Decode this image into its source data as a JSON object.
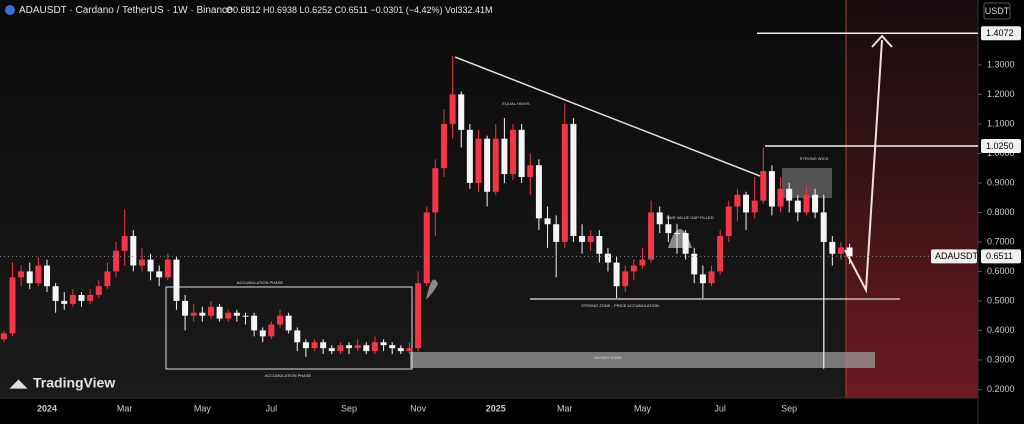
{
  "chart_data": {
    "type": "candlestick",
    "symbol_line": "ADAUSDT · Cardano / TetherUS · 1W · Binance",
    "ohlc_line": "O0.6812 H0.6938 L0.6252 C0.6511 −0.0301 (−4.42%) Vol332.41M",
    "currency": "USDT",
    "brand": "TradingView",
    "up_color": "#f23645",
    "down_color": "#f5f5f5",
    "grid": false,
    "categories": [
      null,
      null,
      null,
      null,
      null,
      "2024",
      null,
      null,
      null,
      null,
      null,
      null,
      null,
      null,
      "Mar",
      null,
      null,
      null,
      null,
      null,
      null,
      null,
      null,
      "May",
      null,
      null,
      null,
      null,
      null,
      null,
      null,
      "Jul",
      null,
      null,
      null,
      null,
      null,
      null,
      null,
      null,
      "Sep",
      null,
      null,
      null,
      null,
      null,
      null,
      null,
      "Nov",
      null,
      null,
      null,
      null,
      null,
      null,
      null,
      null,
      "2025",
      null,
      null,
      null,
      null,
      null,
      null,
      null,
      "Mar",
      null,
      null,
      null,
      null,
      null,
      null,
      null,
      null,
      "May",
      null,
      null,
      null,
      null,
      null,
      null,
      null,
      null,
      "Jul",
      null,
      null,
      null,
      null,
      null,
      null,
      null,
      "Sep",
      null,
      null,
      null,
      null,
      null,
      null,
      null
    ],
    "open": [
      0.37,
      0.39,
      0.58,
      0.6,
      0.56,
      0.62,
      0.55,
      0.5,
      0.49,
      0.52,
      0.5,
      0.52,
      0.55,
      0.6,
      0.67,
      0.72,
      0.62,
      0.64,
      0.6,
      0.58,
      0.64,
      0.5,
      0.45,
      0.46,
      0.45,
      0.48,
      0.44,
      0.46,
      0.45,
      0.45,
      0.4,
      0.38,
      0.42,
      0.45,
      0.4,
      0.36,
      0.34,
      0.36,
      0.34,
      0.33,
      0.35,
      0.34,
      0.35,
      0.33,
      0.36,
      0.35,
      0.34,
      0.33,
      0.34,
      0.56,
      0.8,
      0.95,
      1.1,
      1.2,
      1.08,
      0.9,
      1.05,
      0.87,
      1.05,
      0.93,
      1.08,
      0.92,
      0.96,
      0.78,
      0.76,
      0.7,
      1.1,
      0.72,
      0.7,
      0.72,
      0.66,
      0.63,
      0.55,
      0.6,
      0.62,
      0.64,
      0.8,
      0.76,
      0.73,
      0.73,
      0.66,
      0.59,
      0.56,
      0.6,
      0.72,
      0.82,
      0.86,
      0.8,
      0.84,
      0.94,
      0.82,
      0.88,
      0.84,
      0.8,
      0.86,
      0.8,
      0.7,
      0.66,
      0.6812
    ],
    "high": [
      0.4,
      0.63,
      0.62,
      0.63,
      0.65,
      0.64,
      0.56,
      0.53,
      0.54,
      0.53,
      0.54,
      0.57,
      0.63,
      0.7,
      0.81,
      0.74,
      0.68,
      0.66,
      0.62,
      0.66,
      0.65,
      0.52,
      0.49,
      0.48,
      0.5,
      0.49,
      0.47,
      0.47,
      0.46,
      0.46,
      0.41,
      0.43,
      0.47,
      0.46,
      0.41,
      0.37,
      0.37,
      0.37,
      0.35,
      0.36,
      0.36,
      0.37,
      0.36,
      0.38,
      0.37,
      0.36,
      0.35,
      0.36,
      0.6,
      0.82,
      0.98,
      1.15,
      1.33,
      1.21,
      1.1,
      1.08,
      1.06,
      1.1,
      1.12,
      1.1,
      1.1,
      1.0,
      0.98,
      0.82,
      0.79,
      1.17,
      1.12,
      0.76,
      0.74,
      0.74,
      0.68,
      0.65,
      0.62,
      0.64,
      0.68,
      0.84,
      0.82,
      0.79,
      0.76,
      0.74,
      0.68,
      0.62,
      0.62,
      0.74,
      0.84,
      0.88,
      0.87,
      0.92,
      1.02,
      0.96,
      0.92,
      0.9,
      0.86,
      0.89,
      0.88,
      0.86,
      0.72,
      0.7,
      0.6938
    ],
    "low": [
      0.36,
      0.38,
      0.55,
      0.54,
      0.55,
      0.53,
      0.46,
      0.47,
      0.48,
      0.48,
      0.49,
      0.51,
      0.54,
      0.58,
      0.62,
      0.6,
      0.6,
      0.57,
      0.55,
      0.57,
      0.47,
      0.4,
      0.43,
      0.43,
      0.44,
      0.43,
      0.43,
      0.43,
      0.42,
      0.38,
      0.36,
      0.37,
      0.41,
      0.39,
      0.33,
      0.31,
      0.33,
      0.32,
      0.32,
      0.32,
      0.32,
      0.33,
      0.32,
      0.32,
      0.33,
      0.32,
      0.32,
      0.32,
      0.33,
      0.55,
      0.72,
      0.92,
      1.05,
      1.02,
      0.88,
      0.87,
      0.82,
      0.86,
      0.9,
      0.91,
      0.9,
      0.86,
      0.74,
      0.68,
      0.58,
      0.68,
      0.7,
      0.66,
      0.67,
      0.63,
      0.6,
      0.51,
      0.53,
      0.57,
      0.61,
      0.63,
      0.73,
      0.7,
      0.66,
      0.64,
      0.56,
      0.51,
      0.55,
      0.59,
      0.7,
      0.77,
      0.74,
      0.78,
      0.83,
      0.79,
      0.8,
      0.8,
      0.77,
      0.79,
      0.78,
      0.27,
      0.62,
      0.64,
      0.6252
    ],
    "close": [
      0.39,
      0.58,
      0.6,
      0.56,
      0.62,
      0.55,
      0.5,
      0.49,
      0.52,
      0.5,
      0.52,
      0.55,
      0.6,
      0.67,
      0.72,
      0.62,
      0.64,
      0.6,
      0.58,
      0.64,
      0.5,
      0.45,
      0.46,
      0.45,
      0.48,
      0.44,
      0.46,
      0.45,
      0.45,
      0.4,
      0.38,
      0.42,
      0.45,
      0.4,
      0.36,
      0.34,
      0.36,
      0.34,
      0.33,
      0.35,
      0.34,
      0.35,
      0.33,
      0.36,
      0.35,
      0.34,
      0.33,
      0.34,
      0.56,
      0.8,
      0.95,
      1.1,
      1.2,
      1.08,
      0.9,
      1.05,
      0.87,
      1.05,
      0.93,
      1.08,
      0.92,
      0.96,
      0.78,
      0.76,
      0.7,
      1.1,
      0.72,
      0.7,
      0.72,
      0.66,
      0.63,
      0.55,
      0.6,
      0.62,
      0.64,
      0.8,
      0.76,
      0.73,
      0.73,
      0.66,
      0.59,
      0.56,
      0.6,
      0.72,
      0.82,
      0.86,
      0.8,
      0.84,
      0.94,
      0.82,
      0.88,
      0.84,
      0.8,
      0.86,
      0.8,
      0.7,
      0.66,
      0.6812,
      0.6511
    ],
    "ylim": [
      0.171,
      1.52
    ],
    "yticks": [
      {
        "value": 0.2,
        "label": "0.2000"
      },
      {
        "value": 0.3,
        "label": "0.3000"
      },
      {
        "value": 0.4,
        "label": "0.4000"
      },
      {
        "value": 0.5,
        "label": "0.5000"
      },
      {
        "value": 0.6,
        "label": "0.6000"
      },
      {
        "value": 0.7,
        "label": "0.7000"
      },
      {
        "value": 0.8,
        "label": "0.8000"
      },
      {
        "value": 0.9,
        "label": "0.9000"
      },
      {
        "value": 1.0,
        "label": "1.0000"
      },
      {
        "value": 1.1,
        "label": "1.1000"
      },
      {
        "value": 1.2,
        "label": "1.2000"
      },
      {
        "value": 1.3,
        "label": "1.3000"
      }
    ],
    "levels": [
      {
        "value": 1.4072,
        "label": "1.4072"
      },
      {
        "value": 1.025,
        "label": "1.0250"
      }
    ],
    "last_price": {
      "symbol": "ADAUSDT",
      "value": 0.6511,
      "label": "0.6511"
    },
    "annotations": [
      "ACCUMULATION PHASE",
      "BUYING ZONE",
      "STRONG ZONE - PRICE ACCUMULATION",
      "EQUAL HIGHS",
      "FAIR VALUE GAP FILLED",
      "STRONG WICK",
      "ACCUMULATION PHASE"
    ]
  }
}
